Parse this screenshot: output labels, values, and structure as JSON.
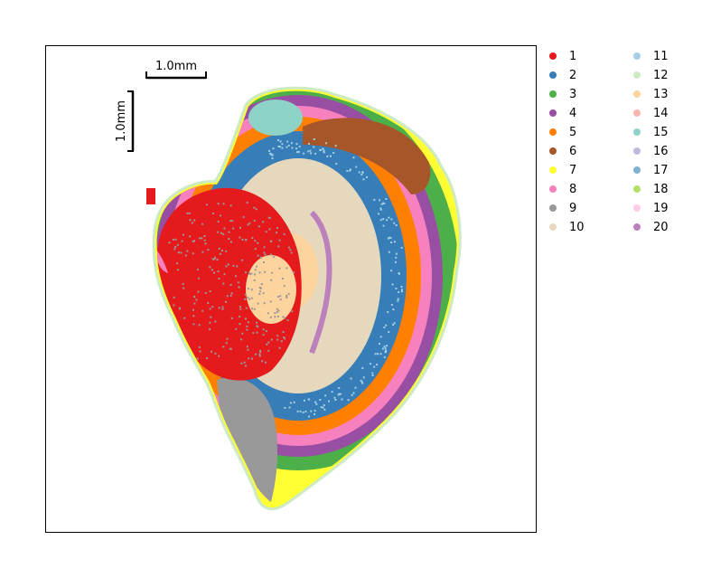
{
  "chart_data": {
    "type": "scatter",
    "title": "",
    "xlabel": "",
    "ylabel": "",
    "grid": false,
    "ticks": false,
    "legend_placement": "right-outside",
    "scalebar": {
      "horizontal_label": "1.0mm",
      "vertical_label": "1.0mm"
    },
    "clusters": [
      {
        "label": "1",
        "color": "#e41a1c"
      },
      {
        "label": "2",
        "color": "#377eb8"
      },
      {
        "label": "3",
        "color": "#4daf4a"
      },
      {
        "label": "4",
        "color": "#984ea3"
      },
      {
        "label": "5",
        "color": "#ff7f00"
      },
      {
        "label": "6",
        "color": "#a65628"
      },
      {
        "label": "7",
        "color": "#ffff33"
      },
      {
        "label": "8",
        "color": "#f781bf"
      },
      {
        "label": "9",
        "color": "#999999"
      },
      {
        "label": "10",
        "color": "#e5d8bd"
      },
      {
        "label": "11",
        "color": "#a6cee3"
      },
      {
        "label": "12",
        "color": "#ccebc5"
      },
      {
        "label": "13",
        "color": "#fdd49e"
      },
      {
        "label": "14",
        "color": "#fbb4ae"
      },
      {
        "label": "15",
        "color": "#8dd3c7"
      },
      {
        "label": "16",
        "color": "#bebada"
      },
      {
        "label": "17",
        "color": "#80b1d3"
      },
      {
        "label": "18",
        "color": "#b3de69"
      },
      {
        "label": "19",
        "color": "#fccde5"
      },
      {
        "label": "20",
        "color": "#bc80bd"
      }
    ]
  }
}
